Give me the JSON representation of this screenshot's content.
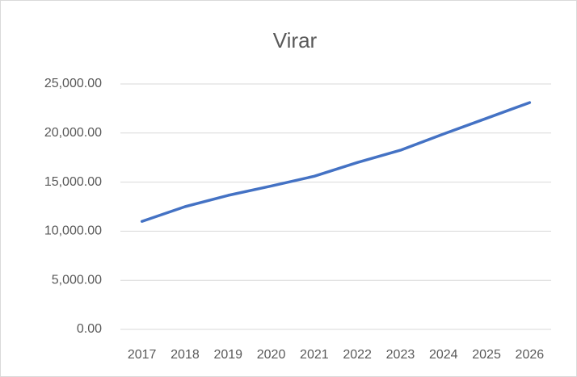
{
  "chart_data": {
    "type": "line",
    "title": "Virar",
    "categories": [
      "2017",
      "2018",
      "2019",
      "2020",
      "2021",
      "2022",
      "2023",
      "2024",
      "2025",
      "2026"
    ],
    "series": [
      {
        "name": "Virar",
        "color": "#4472c4",
        "values": [
          11000,
          12500,
          13650,
          14600,
          15600,
          17000,
          18250,
          19900,
          21500,
          23100
        ]
      }
    ],
    "ylim": [
      0,
      25000
    ],
    "yticks": [
      {
        "value": 0,
        "label": "0.00"
      },
      {
        "value": 5000,
        "label": "5,000.00"
      },
      {
        "value": 10000,
        "label": "10,000.00"
      },
      {
        "value": 15000,
        "label": "15,000.00"
      },
      {
        "value": 20000,
        "label": "20,000.00"
      },
      {
        "value": 25000,
        "label": "25,000.00"
      }
    ],
    "grid": true
  }
}
